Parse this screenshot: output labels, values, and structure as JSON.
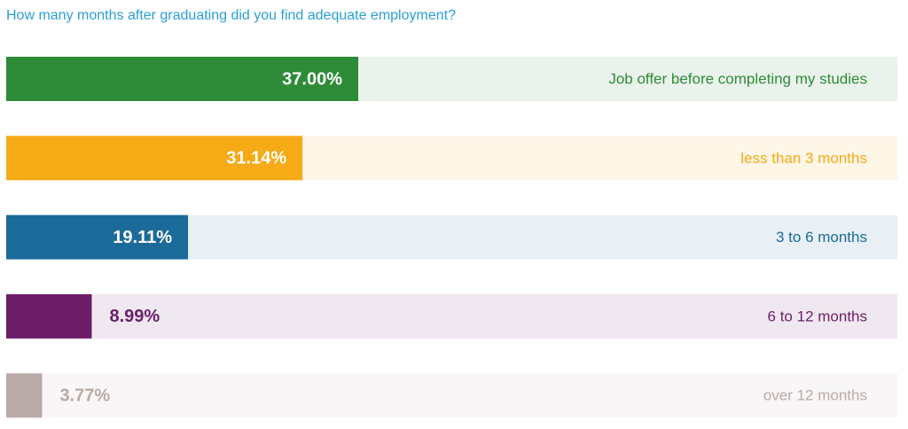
{
  "chart_data": {
    "type": "bar",
    "orientation": "horizontal",
    "title": "How many months after graduating did you find adequate employment?",
    "categories": [
      "Job offer before completing my studies",
      "less than 3 months",
      "3 to 6 months",
      "6 to 12 months",
      "over 12 months"
    ],
    "values": [
      37.0,
      31.14,
      19.11,
      8.99,
      3.77
    ],
    "value_labels": [
      "37.00%",
      "31.14%",
      "19.11%",
      "8.99%",
      "3.77%"
    ],
    "colors": [
      "#2e8b37",
      "#f5aa16",
      "#1b6a9a",
      "#6c1d68",
      "#b9aaa7"
    ]
  }
}
